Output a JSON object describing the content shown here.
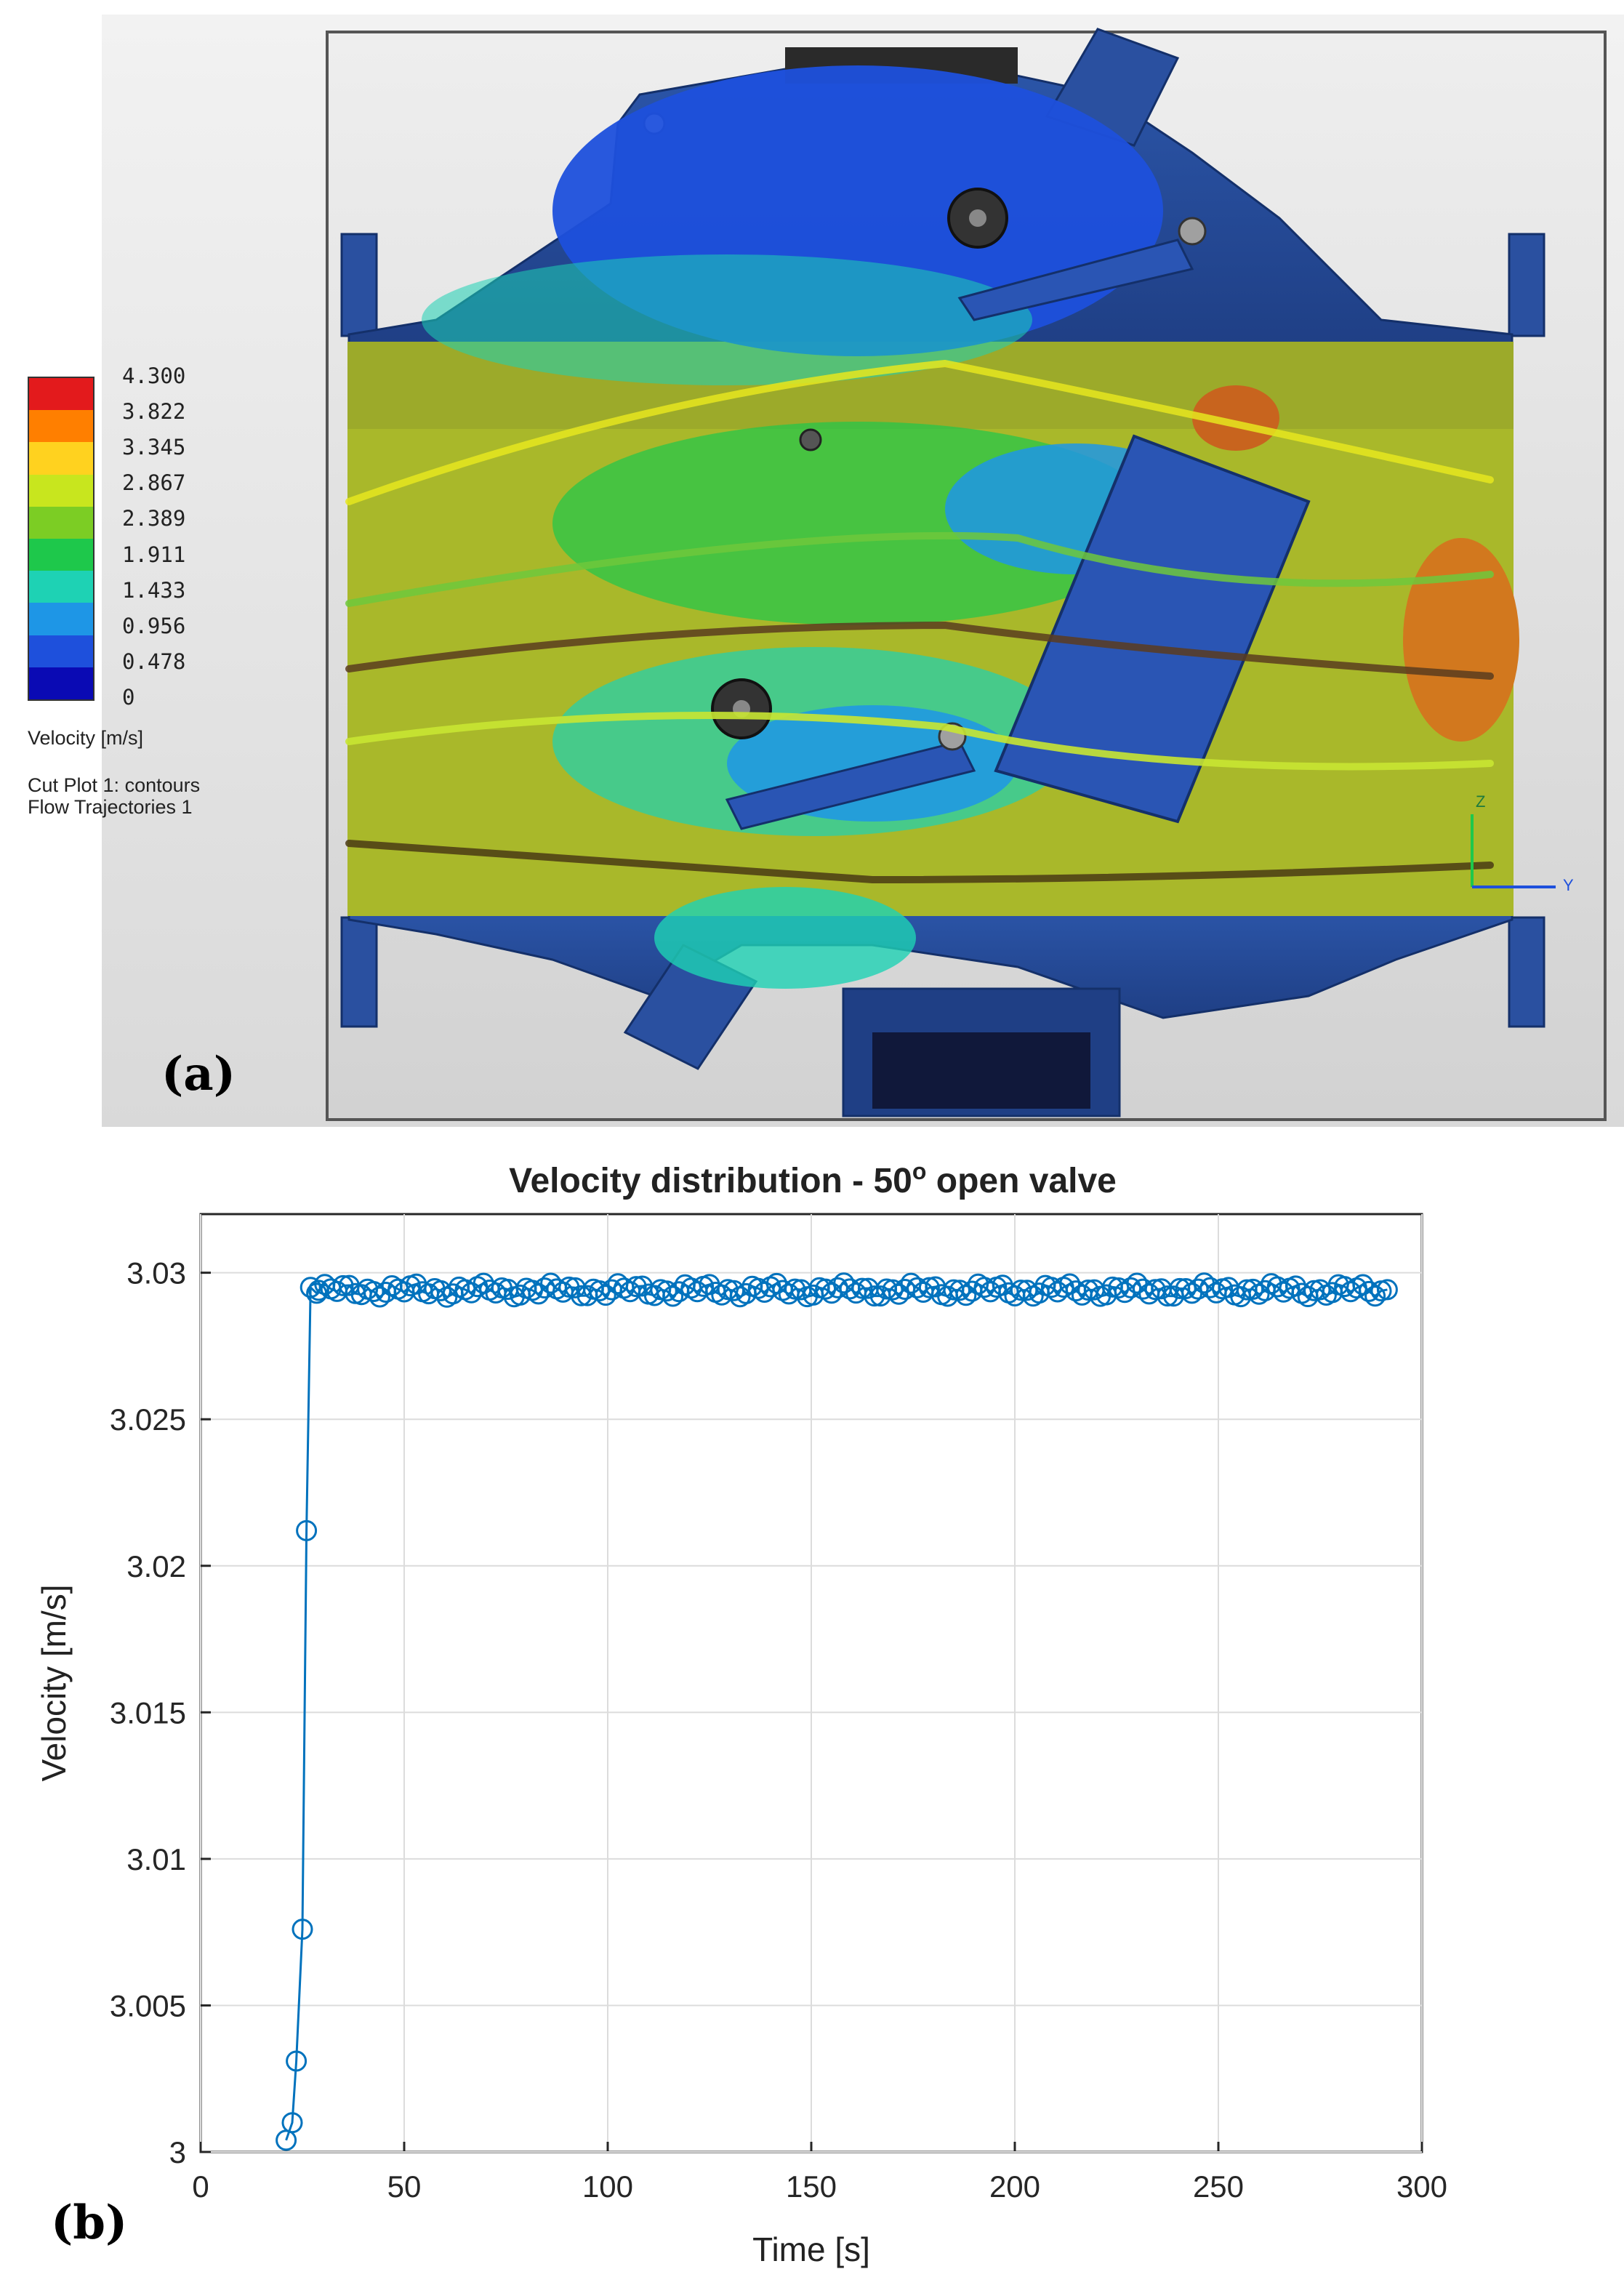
{
  "panel_a": {
    "letter": "(a)",
    "legend": {
      "ticks": [
        "4.300",
        "3.822",
        "3.345",
        "2.867",
        "2.389",
        "1.911",
        "1.433",
        "0.956",
        "0.478",
        "0"
      ],
      "colors": [
        "#e31a1c",
        "#ff7f00",
        "#ffd21f",
        "#c8e61e",
        "#7ccd24",
        "#1ec84b",
        "#1ed2b4",
        "#1e96e6",
        "#1e50dc",
        "#0a0ab4"
      ],
      "title": "Velocity [m/s]",
      "note1": "Cut Plot 1: contours",
      "note2": "Flow Trajectories 1"
    },
    "axis_z": "Z",
    "axis_y": "Y"
  },
  "panel_b": {
    "letter": "(b)"
  },
  "chart_data": {
    "type": "line",
    "title": "Velocity distribution - 50",
    "title_sup": "o",
    "title_tail": " open valve",
    "xlabel": "Time [s]",
    "ylabel": "Velocity [m/s]",
    "xlim": [
      0,
      300
    ],
    "ylim": [
      3.0,
      3.032
    ],
    "xticks": [
      0,
      50,
      100,
      150,
      200,
      250,
      300
    ],
    "xtick_labels": [
      "0",
      "50",
      "100",
      "150",
      "200",
      "250",
      "300"
    ],
    "yticks": [
      3.0,
      3.005,
      3.01,
      3.015,
      3.02,
      3.025,
      3.03
    ],
    "ytick_labels": [
      "3",
      "3.005",
      "3.01",
      "3.015",
      "3.02",
      "3.025",
      "3.03"
    ],
    "grid": true,
    "marker": "circle",
    "color": "#0072bd",
    "transient": {
      "x": [
        21,
        22.5,
        23.5,
        25,
        26,
        27,
        28.5
      ],
      "y": [
        3.0004,
        3.001,
        3.0031,
        3.0076,
        3.0212,
        3.0295,
        3.0293
      ]
    },
    "steady": {
      "x_start": 29,
      "x_end": 292,
      "step": 1.5,
      "mean": 3.0294,
      "spread": 0.00025
    }
  }
}
